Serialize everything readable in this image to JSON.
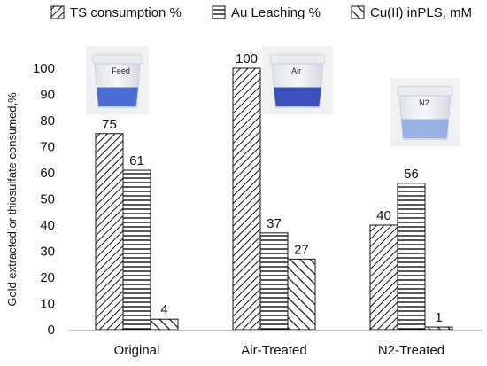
{
  "chart_data": {
    "type": "bar",
    "categories": [
      "Original",
      "Air-Treated",
      "N2-Treated"
    ],
    "series": [
      {
        "name": "TS consumption %",
        "pattern": "diagonal-dense",
        "values": [
          75,
          100,
          40
        ]
      },
      {
        "name": "Au Leaching %",
        "pattern": "horizontal",
        "values": [
          61,
          37,
          56
        ]
      },
      {
        "name": "Cu(II) inPLS, mM",
        "pattern": "diagonal-wide",
        "values": [
          4,
          27,
          1
        ]
      }
    ],
    "data_labels": [
      [
        "75",
        "61",
        "4"
      ],
      [
        "100",
        "37",
        "27"
      ],
      [
        "40",
        "56",
        "1"
      ]
    ],
    "ylabel": "Gold extracted or thiosulfate consumed,%",
    "xlabel": "",
    "ylim": [
      0,
      100
    ],
    "yticks": [
      0,
      10,
      20,
      30,
      40,
      50,
      60,
      70,
      80,
      90,
      100
    ],
    "grid": false,
    "legend_position": "top",
    "photos": [
      {
        "category": "Original",
        "label": "Feed",
        "liquid_color": "#3a5fd0"
      },
      {
        "category": "Air-Treated",
        "label": "Air",
        "liquid_color": "#2a3fb8"
      },
      {
        "category": "N2-Treated",
        "label": "N2",
        "liquid_color": "#8fa8e0"
      }
    ]
  }
}
